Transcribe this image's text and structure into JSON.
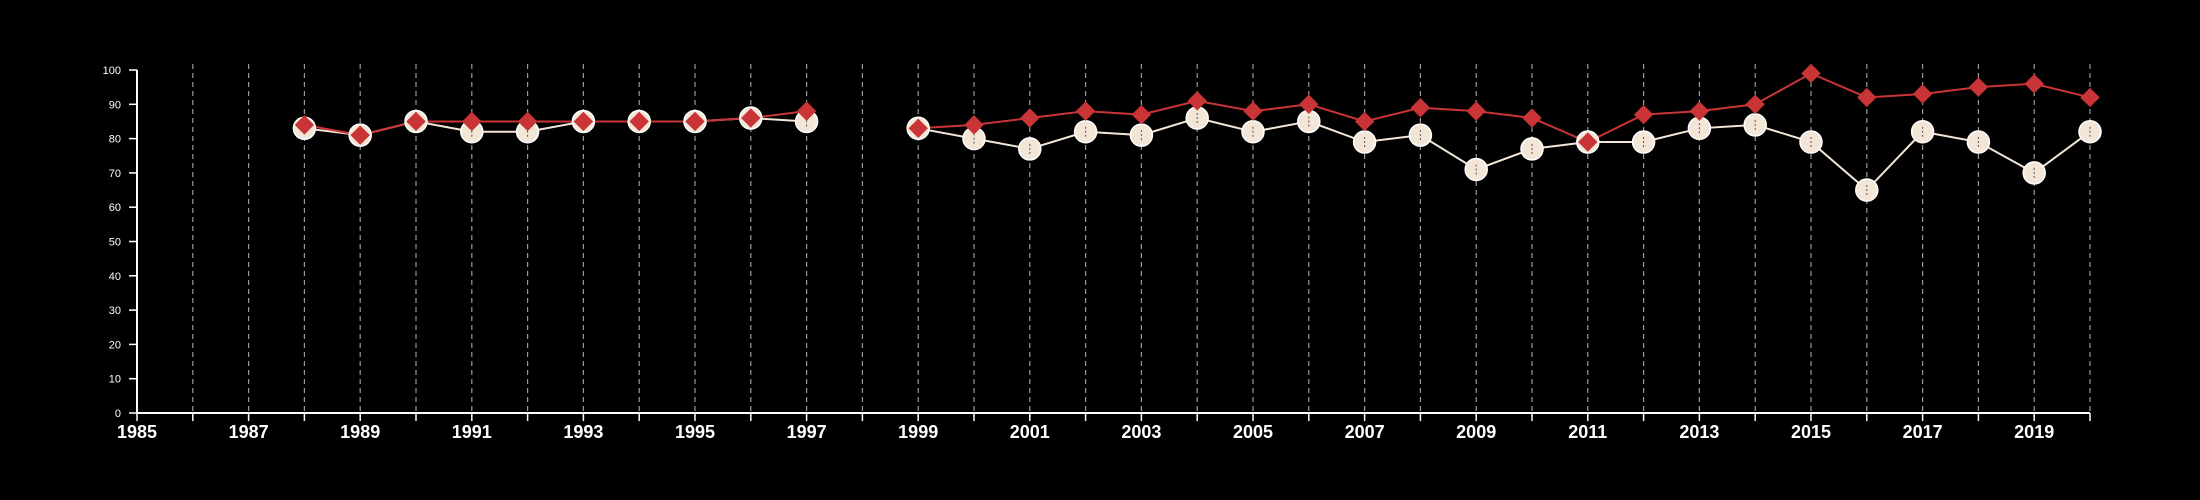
{
  "chart_data": {
    "type": "line",
    "title": "",
    "xlabel": "",
    "ylabel": "",
    "xlim": [
      1985,
      2020
    ],
    "ylim": [
      0,
      100
    ],
    "x_ticks": [
      1985,
      1987,
      1989,
      1991,
      1993,
      1995,
      1997,
      1999,
      2001,
      2003,
      2005,
      2007,
      2009,
      2011,
      2013,
      2015,
      2017,
      2019
    ],
    "y_ticks": [
      0,
      10,
      20,
      30,
      40,
      50,
      60,
      70,
      80,
      90,
      100
    ],
    "grid": "vertical dashed",
    "legend": "none",
    "series": [
      {
        "marker": "circle",
        "color": "#f3e6d6",
        "points": [
          [
            1988,
            83
          ],
          [
            1989,
            81
          ],
          [
            1990,
            85
          ],
          [
            1991,
            82
          ],
          [
            1992,
            82
          ],
          [
            1993,
            85
          ],
          [
            1994,
            85
          ],
          [
            1995,
            85
          ],
          [
            1996,
            86
          ],
          [
            1997,
            85
          ],
          [
            1999,
            83
          ],
          [
            2000,
            80
          ],
          [
            2001,
            77
          ],
          [
            2002,
            82
          ],
          [
            2003,
            81
          ],
          [
            2004,
            86
          ],
          [
            2005,
            82
          ],
          [
            2006,
            85
          ],
          [
            2007,
            79
          ],
          [
            2008,
            81
          ],
          [
            2009,
            71
          ],
          [
            2010,
            77
          ],
          [
            2011,
            79
          ],
          [
            2012,
            79
          ],
          [
            2013,
            83
          ],
          [
            2014,
            84
          ],
          [
            2015,
            79
          ],
          [
            2016,
            65
          ],
          [
            2017,
            82
          ],
          [
            2018,
            79
          ],
          [
            2019,
            70
          ],
          [
            2020,
            82
          ]
        ]
      },
      {
        "marker": "diamond",
        "color": "#c93437",
        "points": [
          [
            1988,
            84
          ],
          [
            1989,
            81
          ],
          [
            1990,
            85
          ],
          [
            1991,
            85
          ],
          [
            1992,
            85
          ],
          [
            1993,
            85
          ],
          [
            1994,
            85
          ],
          [
            1995,
            85
          ],
          [
            1996,
            86
          ],
          [
            1997,
            88
          ],
          [
            1999,
            83
          ],
          [
            2000,
            84
          ],
          [
            2001,
            86
          ],
          [
            2002,
            88
          ],
          [
            2003,
            87
          ],
          [
            2004,
            91
          ],
          [
            2005,
            88
          ],
          [
            2006,
            90
          ],
          [
            2007,
            85
          ],
          [
            2008,
            89
          ],
          [
            2009,
            88
          ],
          [
            2010,
            86
          ],
          [
            2011,
            79
          ],
          [
            2012,
            87
          ],
          [
            2013,
            88
          ],
          [
            2014,
            90
          ],
          [
            2015,
            99
          ],
          [
            2016,
            92
          ],
          [
            2017,
            93
          ],
          [
            2018,
            95
          ],
          [
            2019,
            96
          ],
          [
            2020,
            92
          ]
        ]
      }
    ]
  }
}
